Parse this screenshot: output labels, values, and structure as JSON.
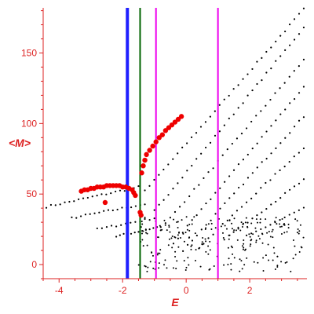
{
  "chart_data": {
    "type": "scatter",
    "title": "",
    "xlabel": "E",
    "ylabel": "<M>",
    "xlim": [
      -4.5,
      3.8
    ],
    "ylim": [
      -10,
      182
    ],
    "x_ticks": [
      -4,
      -2,
      0,
      2
    ],
    "y_ticks": [
      0,
      50,
      100,
      150
    ],
    "grid": false,
    "axis_color": "#dd2222",
    "vertical_lines": [
      {
        "x": -1.85,
        "color": "#1f1fff"
      },
      {
        "x": -1.45,
        "color": "#006400"
      },
      {
        "x": -0.95,
        "color": "#ee00ee"
      },
      {
        "x": 1.0,
        "color": "#ee00ee"
      }
    ],
    "series": [
      {
        "color": "#000000",
        "style": "dots",
        "bands": [
          {
            "x": [
              -4.4,
              -1.5
            ],
            "y": [
              41,
              55
            ]
          },
          {
            "x": [
              -3.6,
              -1.3
            ],
            "y": [
              33,
              43
            ]
          },
          {
            "x": [
              -2.8,
              -1.0
            ],
            "y": [
              25,
              33
            ]
          },
          {
            "x": [
              -2.2,
              -0.8
            ],
            "y": [
              20,
              27
            ]
          },
          {
            "x": [
              -1.3,
              3.7
            ],
            "y": [
              52,
              181
            ]
          },
          {
            "x": [
              -1.0,
              3.7
            ],
            "y": [
              38,
              168
            ]
          },
          {
            "x": [
              -0.8,
              3.7
            ],
            "y": [
              25,
              145
            ]
          },
          {
            "x": [
              -0.4,
              3.7
            ],
            "y": [
              15,
              126
            ]
          },
          {
            "x": [
              -0.1,
              3.7
            ],
            "y": [
              10,
              105
            ]
          },
          {
            "x": [
              0.4,
              3.7
            ],
            "y": [
              12,
              83
            ]
          },
          {
            "x": [
              1.2,
              3.7
            ],
            "y": [
              18,
              60
            ]
          },
          {
            "x": [
              1.9,
              3.7
            ],
            "y": [
              20,
              40
            ]
          }
        ],
        "cloud": {
          "x": [
            -1.5,
            3.7
          ],
          "y": [
            -5,
            34
          ]
        }
      },
      {
        "color": "#ee0000",
        "style": "large-dots",
        "points": [
          [
            -3.3,
            52
          ],
          [
            -3.2,
            53
          ],
          [
            -3.1,
            53
          ],
          [
            -3.0,
            54
          ],
          [
            -2.9,
            54
          ],
          [
            -2.8,
            55
          ],
          [
            -2.7,
            55
          ],
          [
            -2.6,
            55
          ],
          [
            -2.5,
            56
          ],
          [
            -2.4,
            56
          ],
          [
            -2.3,
            56
          ],
          [
            -2.2,
            56
          ],
          [
            -2.1,
            56
          ],
          [
            -2.0,
            55
          ],
          [
            -1.9,
            55
          ],
          [
            -1.8,
            54
          ],
          [
            -1.7,
            53
          ],
          [
            -1.65,
            51
          ],
          [
            -1.6,
            49
          ],
          [
            -2.55,
            44
          ],
          [
            -1.45,
            37
          ],
          [
            -1.42,
            35
          ],
          [
            -1.4,
            65
          ],
          [
            -1.35,
            70
          ],
          [
            -1.3,
            74
          ],
          [
            -1.25,
            78
          ],
          [
            -1.15,
            81
          ],
          [
            -1.05,
            84
          ],
          [
            -0.95,
            87
          ],
          [
            -0.85,
            90
          ],
          [
            -0.75,
            92
          ],
          [
            -0.65,
            95
          ],
          [
            -0.55,
            97
          ],
          [
            -0.45,
            99
          ],
          [
            -0.35,
            101
          ],
          [
            -0.25,
            103
          ],
          [
            -0.15,
            105
          ]
        ]
      }
    ]
  }
}
